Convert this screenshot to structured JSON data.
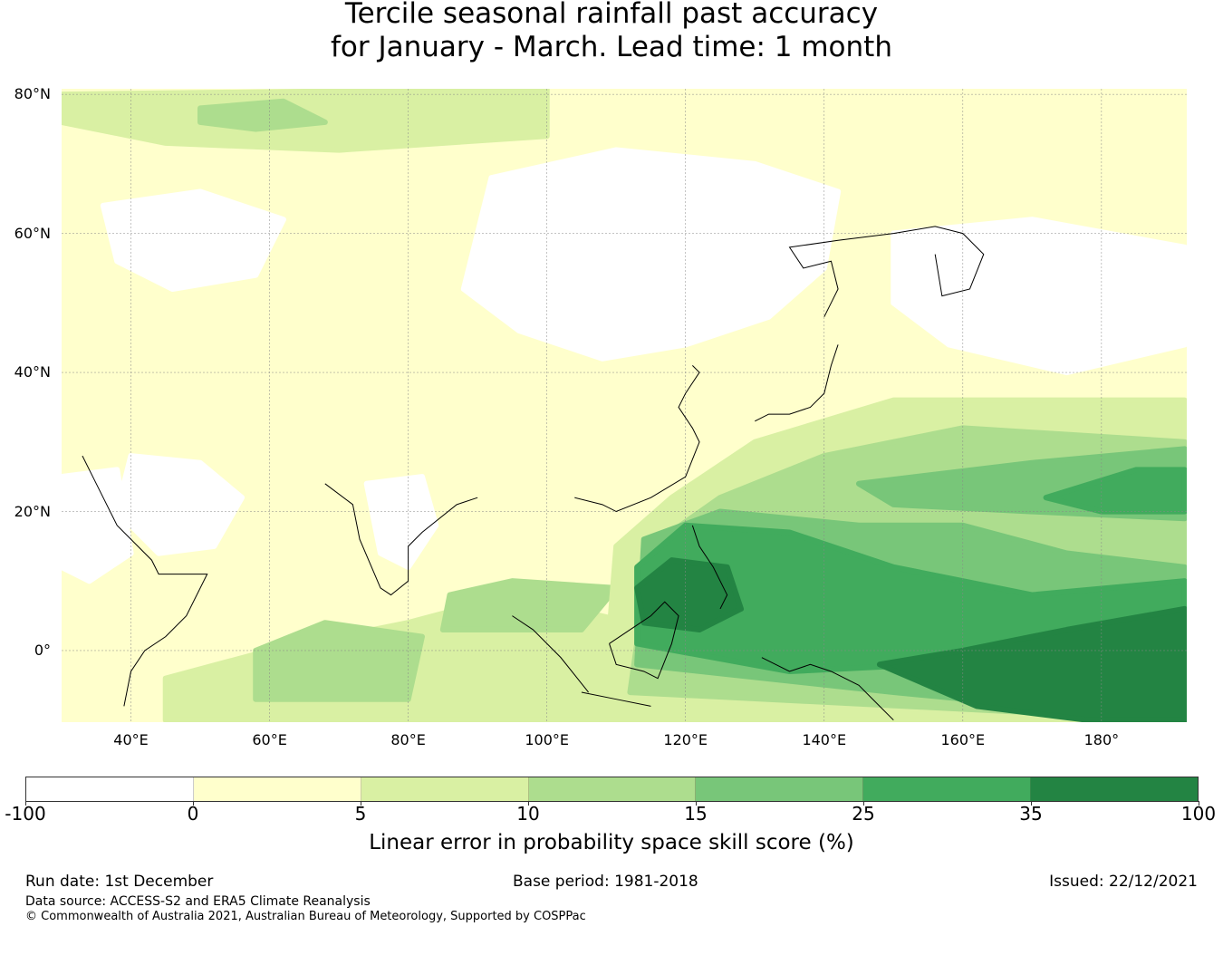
{
  "title": [
    "Tercile seasonal rainfall past accuracy",
    "for January - March. Lead time: 1 month"
  ],
  "map_data": {
    "extent": {
      "lon": [
        30,
        192.3
      ],
      "lat": [
        -10.3,
        80.8
      ]
    },
    "lat_ticks": [
      {
        "v": 80,
        "label": "80°N"
      },
      {
        "v": 60,
        "label": "60°N"
      },
      {
        "v": 40,
        "label": "40°N"
      },
      {
        "v": 20,
        "label": "20°N"
      },
      {
        "v": 0,
        "label": "0°"
      }
    ],
    "lon_ticks": [
      {
        "v": 40,
        "label": "40°E"
      },
      {
        "v": 60,
        "label": "60°E"
      },
      {
        "v": 80,
        "label": "80°E"
      },
      {
        "v": 100,
        "label": "100°E"
      },
      {
        "v": 120,
        "label": "120°E"
      },
      {
        "v": 140,
        "label": "140°E"
      },
      {
        "v": 160,
        "label": "160°E"
      },
      {
        "v": 180,
        "label": "180°"
      }
    ],
    "background_class": 1,
    "regions": [
      {
        "c": 0,
        "pts": [
          [
            92,
            68
          ],
          [
            110,
            72
          ],
          [
            130,
            70
          ],
          [
            142,
            66
          ],
          [
            140,
            55
          ],
          [
            132,
            48
          ],
          [
            120,
            44
          ],
          [
            108,
            42
          ],
          [
            96,
            46
          ],
          [
            88,
            52
          ],
          [
            90,
            60
          ]
        ]
      },
      {
        "c": 0,
        "pts": [
          [
            36,
            64
          ],
          [
            50,
            66
          ],
          [
            62,
            62
          ],
          [
            58,
            54
          ],
          [
            46,
            52
          ],
          [
            38,
            56
          ]
        ]
      },
      {
        "c": 0,
        "pts": [
          [
            40,
            28
          ],
          [
            50,
            27
          ],
          [
            56,
            22
          ],
          [
            52,
            15
          ],
          [
            44,
            14
          ],
          [
            38,
            20
          ]
        ]
      },
      {
        "c": 0,
        "pts": [
          [
            74,
            24
          ],
          [
            82,
            25
          ],
          [
            84,
            18
          ],
          [
            80,
            12
          ],
          [
            76,
            14
          ]
        ]
      },
      {
        "c": 0,
        "pts": [
          [
            30,
            25
          ],
          [
            38,
            26
          ],
          [
            40,
            14
          ],
          [
            34,
            10
          ],
          [
            30,
            12
          ]
        ]
      },
      {
        "c": 0,
        "pts": [
          [
            150,
            60
          ],
          [
            170,
            62
          ],
          [
            192,
            58
          ],
          [
            192,
            44
          ],
          [
            175,
            40
          ],
          [
            158,
            44
          ],
          [
            150,
            50
          ]
        ]
      },
      {
        "c": 0,
        "pts": [
          [
            166,
            15
          ],
          [
            182,
            15
          ],
          [
            185,
            11
          ],
          [
            176,
            9
          ],
          [
            166,
            11
          ]
        ]
      },
      {
        "c": 0,
        "pts": [
          [
            125,
            -3
          ],
          [
            135,
            -3
          ],
          [
            138,
            -9
          ],
          [
            126,
            -9
          ]
        ]
      },
      {
        "c": 2,
        "pts": [
          [
            30,
            80
          ],
          [
            100,
            80.8
          ],
          [
            100,
            74
          ],
          [
            70,
            72
          ],
          [
            45,
            73
          ],
          [
            30,
            76
          ]
        ]
      },
      {
        "c": 3,
        "pts": [
          [
            50,
            78
          ],
          [
            62,
            79
          ],
          [
            68,
            76
          ],
          [
            58,
            75
          ],
          [
            50,
            76
          ]
        ]
      },
      {
        "c": 2,
        "pts": [
          [
            45,
            -10
          ],
          [
            110,
            -10
          ],
          [
            112,
            4
          ],
          [
            95,
            8
          ],
          [
            80,
            4
          ],
          [
            60,
            0
          ],
          [
            45,
            -4
          ]
        ]
      },
      {
        "c": 3,
        "pts": [
          [
            58,
            -7
          ],
          [
            80,
            -7
          ],
          [
            82,
            2
          ],
          [
            68,
            4
          ],
          [
            58,
            0
          ]
        ]
      },
      {
        "c": 3,
        "pts": [
          [
            85,
            3
          ],
          [
            105,
            3
          ],
          [
            110,
            9
          ],
          [
            95,
            10
          ],
          [
            86,
            8
          ]
        ]
      },
      {
        "c": 2,
        "pts": [
          [
            108,
            -10
          ],
          [
            192,
            -10
          ],
          [
            192,
            36
          ],
          [
            150,
            36
          ],
          [
            130,
            30
          ],
          [
            118,
            22
          ],
          [
            110,
            15
          ]
        ]
      },
      {
        "c": 3,
        "pts": [
          [
            112,
            -6
          ],
          [
            192,
            -10
          ],
          [
            192,
            30
          ],
          [
            160,
            32
          ],
          [
            140,
            28
          ],
          [
            125,
            22
          ],
          [
            115,
            15
          ]
        ]
      },
      {
        "c": 4,
        "pts": [
          [
            113,
            -2
          ],
          [
            150,
            -6
          ],
          [
            192,
            -10
          ],
          [
            192,
            12
          ],
          [
            175,
            14
          ],
          [
            160,
            18
          ],
          [
            145,
            18
          ],
          [
            125,
            20
          ],
          [
            114,
            16
          ]
        ]
      },
      {
        "c": 4,
        "pts": [
          [
            145,
            24
          ],
          [
            170,
            27
          ],
          [
            192,
            29
          ],
          [
            192,
            19
          ],
          [
            170,
            20
          ],
          [
            150,
            21
          ]
        ]
      },
      {
        "c": 5,
        "pts": [
          [
            113,
            1
          ],
          [
            135,
            -3
          ],
          [
            155,
            -2
          ],
          [
            192,
            0
          ],
          [
            192,
            10
          ],
          [
            170,
            8
          ],
          [
            150,
            12
          ],
          [
            135,
            17
          ],
          [
            120,
            18
          ],
          [
            113,
            12
          ]
        ]
      },
      {
        "c": 5,
        "pts": [
          [
            172,
            22
          ],
          [
            185,
            26
          ],
          [
            192,
            26
          ],
          [
            192,
            20
          ],
          [
            180,
            20
          ]
        ]
      },
      {
        "c": 6,
        "pts": [
          [
            114,
            4
          ],
          [
            122,
            3
          ],
          [
            128,
            6
          ],
          [
            126,
            12
          ],
          [
            118,
            13
          ],
          [
            113,
            9
          ]
        ]
      },
      {
        "c": 6,
        "pts": [
          [
            148,
            -2
          ],
          [
            160,
            0
          ],
          [
            175,
            3
          ],
          [
            192,
            6
          ],
          [
            192,
            -10
          ],
          [
            178,
            -10
          ],
          [
            162,
            -8
          ]
        ]
      }
    ],
    "coastlines": [
      [
        [
          68,
          24
        ],
        [
          72,
          21
        ],
        [
          73,
          16
        ],
        [
          76,
          9
        ],
        [
          77.5,
          8
        ],
        [
          80,
          10
        ],
        [
          80,
          15
        ],
        [
          82,
          17
        ],
        [
          87,
          21
        ],
        [
          90,
          22
        ]
      ],
      [
        [
          109,
          1
        ],
        [
          110,
          -2
        ],
        [
          114,
          -3
        ],
        [
          116,
          -4
        ],
        [
          118,
          1
        ],
        [
          119,
          5
        ],
        [
          117,
          7
        ],
        [
          115,
          5
        ],
        [
          112,
          3
        ],
        [
          109,
          1
        ]
      ],
      [
        [
          39,
          -8
        ],
        [
          40,
          -3
        ],
        [
          42,
          0
        ],
        [
          45,
          2
        ],
        [
          48,
          5
        ],
        [
          51,
          11
        ],
        [
          44,
          11
        ],
        [
          43,
          13
        ],
        [
          38,
          18
        ],
        [
          35,
          24
        ],
        [
          33,
          28
        ]
      ],
      [
        [
          95,
          5
        ],
        [
          98,
          3
        ],
        [
          102,
          -1
        ],
        [
          106,
          -6
        ]
      ],
      [
        [
          105,
          -6
        ],
        [
          110,
          -7
        ],
        [
          115,
          -8
        ]
      ],
      [
        [
          131,
          -1
        ],
        [
          135,
          -3
        ],
        [
          138,
          -2
        ],
        [
          141,
          -3
        ],
        [
          145,
          -5
        ],
        [
          148,
          -8
        ],
        [
          150,
          -10
        ]
      ],
      [
        [
          121,
          18
        ],
        [
          122,
          15
        ],
        [
          124,
          12
        ],
        [
          126,
          8
        ],
        [
          125,
          6
        ]
      ],
      [
        [
          104,
          22
        ],
        [
          108,
          21
        ],
        [
          110,
          20
        ],
        [
          115,
          22
        ],
        [
          120,
          25
        ],
        [
          122,
          30
        ],
        [
          121,
          32
        ],
        [
          119,
          35
        ],
        [
          120,
          37
        ],
        [
          122,
          40
        ],
        [
          121,
          41
        ]
      ],
      [
        [
          130,
          33
        ],
        [
          132,
          34
        ],
        [
          135,
          34
        ],
        [
          138,
          35
        ],
        [
          140,
          37
        ],
        [
          141,
          41
        ],
        [
          142,
          44
        ]
      ],
      [
        [
          140,
          48
        ],
        [
          142,
          52
        ],
        [
          141,
          56
        ],
        [
          137,
          55
        ],
        [
          135,
          58
        ],
        [
          142,
          59
        ],
        [
          150,
          60
        ],
        [
          156,
          61
        ],
        [
          160,
          60
        ],
        [
          163,
          57
        ],
        [
          161,
          52
        ],
        [
          157,
          51
        ],
        [
          156,
          57
        ]
      ]
    ]
  },
  "colorbar": {
    "colors": [
      "#ffffff",
      "#ffffcc",
      "#d9f0a3",
      "#addd8e",
      "#78c679",
      "#41ab5d",
      "#238443"
    ],
    "ticks": [
      "-100",
      "0",
      "5",
      "10",
      "15",
      "25",
      "35",
      "100"
    ],
    "label": "Linear error in probability space skill score (%)"
  },
  "footer": {
    "run_date": "Run date: 1st December",
    "base_period": "Base period: 1981-2018",
    "issued": "Issued: 22/12/2021",
    "data_source": "Data source: ACCESS-S2 and ERA5 Climate Reanalysis",
    "copyright": "© Commonwealth of Australia 2021, Australian Bureau of Meteorology, Supported by COSPPac"
  }
}
